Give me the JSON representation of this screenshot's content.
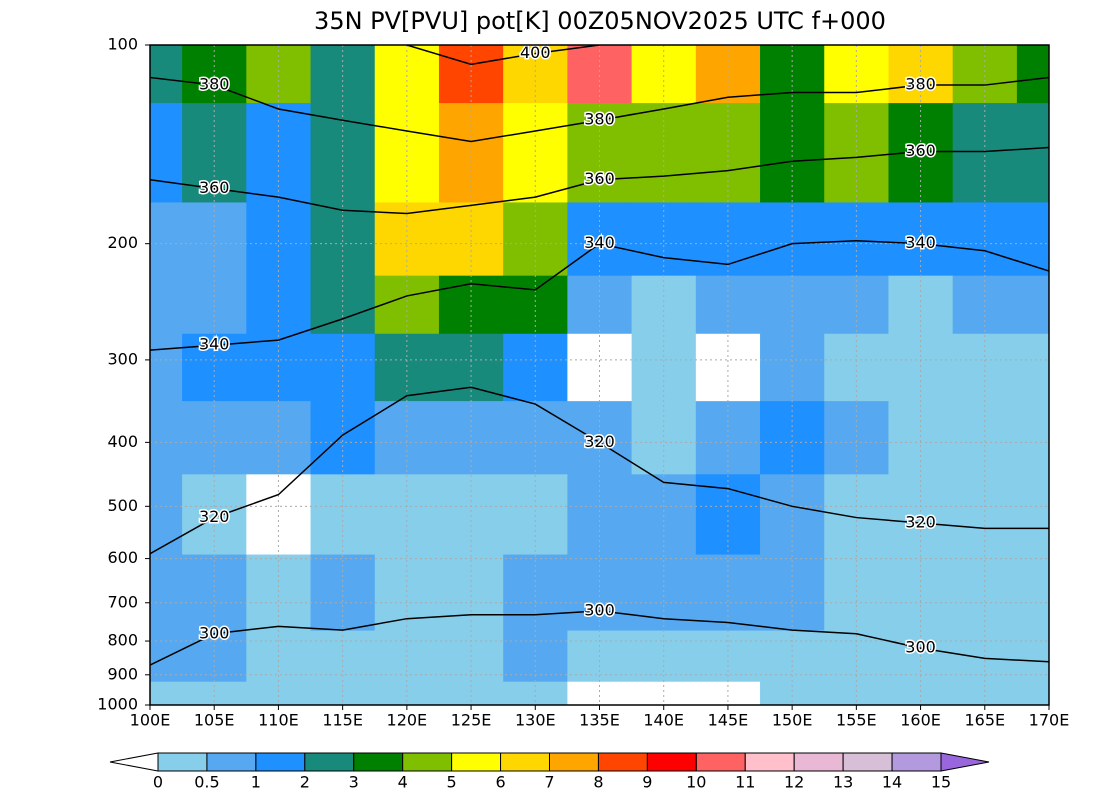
{
  "chart_data": {
    "type": "cross-section",
    "title": "35N PV[PVU] pot[K] 00Z05NOV2025 UTC f+000",
    "log_y": true,
    "y_reversed": true,
    "grid": true,
    "xlim": [
      100,
      170
    ],
    "ylim": [
      1000,
      100
    ],
    "xticks": [
      {
        "value": 100,
        "label": "100E"
      },
      {
        "value": 105,
        "label": "105E"
      },
      {
        "value": 110,
        "label": "110E"
      },
      {
        "value": 115,
        "label": "115E"
      },
      {
        "value": 120,
        "label": "120E"
      },
      {
        "value": 125,
        "label": "125E"
      },
      {
        "value": 130,
        "label": "130E"
      },
      {
        "value": 135,
        "label": "135E"
      },
      {
        "value": 140,
        "label": "140E"
      },
      {
        "value": 145,
        "label": "145E"
      },
      {
        "value": 150,
        "label": "150E"
      },
      {
        "value": 155,
        "label": "155E"
      },
      {
        "value": 160,
        "label": "160E"
      },
      {
        "value": 165,
        "label": "165E"
      },
      {
        "value": 170,
        "label": "170E"
      }
    ],
    "yticks": [
      100,
      200,
      300,
      400,
      500,
      600,
      700,
      800,
      900,
      1000
    ],
    "field": {
      "x": [
        100,
        105,
        110,
        115,
        120,
        125,
        130,
        135,
        140,
        145,
        150,
        155,
        160,
        165,
        170
      ],
      "pressure": [
        100,
        150,
        200,
        250,
        300,
        400,
        500,
        700,
        850,
        1000
      ],
      "values": [
        [
          2.5,
          3.5,
          4.5,
          2.5,
          5.5,
          8.5,
          6.5,
          10,
          5.5,
          7,
          3.5,
          5.5,
          6.5,
          4.5,
          3.5
        ],
        [
          1.5,
          2.5,
          1.5,
          2.5,
          5.5,
          7.5,
          5.5,
          4.5,
          4.5,
          4.5,
          3.5,
          4.5,
          3.5,
          2.5,
          2.5
        ],
        [
          0.7,
          0.7,
          1.2,
          2.5,
          6.5,
          6.5,
          4.5,
          1.5,
          1.5,
          1.5,
          1.2,
          1.5,
          1.2,
          1.2,
          1.2
        ],
        [
          0.5,
          0.7,
          1.2,
          2.5,
          4.5,
          3.5,
          3.5,
          0.7,
          0.3,
          0.5,
          0.5,
          0.5,
          0.3,
          0.5,
          0.5
        ],
        [
          0.7,
          1.2,
          1.2,
          1.2,
          2.5,
          2.5,
          1.2,
          -0.2,
          0.3,
          -0.2,
          0.5,
          0.3,
          0.3,
          0.3,
          0.3
        ],
        [
          0.7,
          0.7,
          0.7,
          1.2,
          0.7,
          0.7,
          0.7,
          0.6,
          0.3,
          0.7,
          1.2,
          0.7,
          0.3,
          0.3,
          0.3
        ],
        [
          0.7,
          0.3,
          -0.2,
          0.3,
          0.3,
          0.3,
          0.3,
          0.6,
          0.7,
          1.2,
          0.7,
          0.3,
          0.3,
          0.3,
          0.3
        ],
        [
          0.7,
          0.7,
          0.3,
          0.7,
          0.3,
          0.3,
          0.6,
          0.6,
          0.6,
          0.6,
          0.6,
          0.3,
          0.3,
          0.3,
          0.3
        ],
        [
          0.6,
          0.7,
          0.3,
          0.3,
          0.3,
          0.3,
          0.6,
          0.3,
          0.3,
          0.3,
          0.3,
          0.3,
          0.3,
          0.3,
          0.3
        ],
        [
          0.3,
          0.3,
          0.3,
          0.3,
          0.3,
          0.3,
          0.3,
          -0.1,
          -0.1,
          -0.1,
          0.3,
          0.3,
          0.3,
          0.3,
          0.3
        ]
      ]
    },
    "isentropes": {
      "color": "#000000",
      "x": [
        100,
        105,
        110,
        115,
        120,
        125,
        130,
        135,
        140,
        145,
        150,
        155,
        160,
        165,
        170
      ],
      "series": [
        {
          "name": "300",
          "values": [
            870,
            780,
            760,
            770,
            740,
            730,
            730,
            720,
            740,
            750,
            770,
            780,
            820,
            850,
            860
          ]
        },
        {
          "name": "320",
          "values": [
            590,
            520,
            480,
            390,
            340,
            330,
            350,
            400,
            460,
            470,
            500,
            520,
            530,
            540,
            540
          ]
        },
        {
          "name": "340",
          "values": [
            290,
            285,
            280,
            260,
            240,
            230,
            235,
            200,
            210,
            215,
            200,
            198,
            200,
            205,
            220
          ]
        },
        {
          "name": "360",
          "values": [
            160,
            165,
            170,
            178,
            180,
            175,
            170,
            160,
            158,
            155,
            150,
            148,
            145,
            145,
            143
          ]
        },
        {
          "name": "380",
          "values": [
            112,
            115,
            125,
            130,
            135,
            140,
            135,
            130,
            125,
            120,
            118,
            118,
            115,
            115,
            112
          ]
        },
        {
          "name": "400",
          "values": [
            null,
            null,
            null,
            null,
            100,
            107,
            103,
            100,
            null,
            null,
            null,
            null,
            null,
            null,
            null
          ]
        }
      ]
    },
    "colorbar": {
      "levels": [
        0,
        0.5,
        1,
        2,
        3,
        4,
        5,
        6,
        7,
        8,
        9,
        10,
        11,
        12,
        13,
        14,
        15
      ],
      "colors": [
        "#87ceeb",
        "#56a9f0",
        "#1e90ff",
        "#178a7c",
        "#008000",
        "#7fbf00",
        "#ffff00",
        "#ffd700",
        "#ffa500",
        "#ff4500",
        "#ff0000",
        "#ff6262",
        "#ffc0cb",
        "#e8b8d4",
        "#d8bfd8",
        "#b39ade"
      ],
      "under": "#ffffff",
      "over": "#9966dd"
    }
  }
}
